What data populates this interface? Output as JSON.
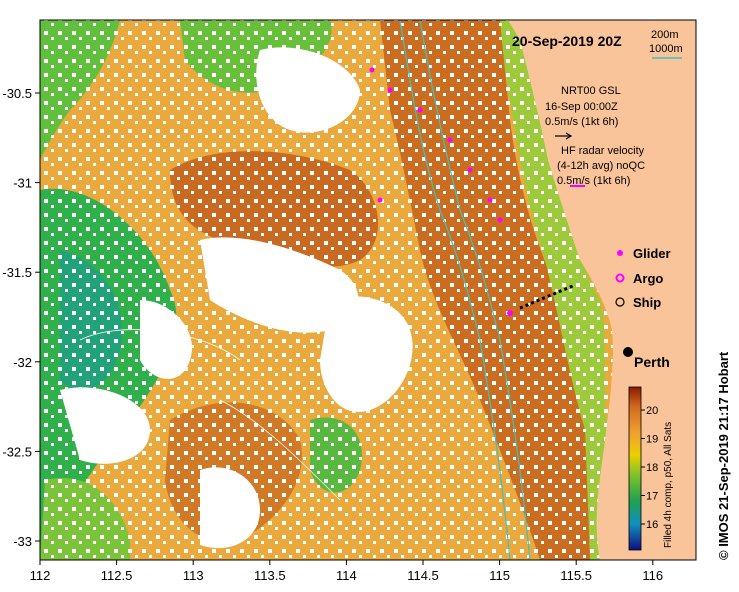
{
  "map": {
    "title": "20-Sep-2019 20Z",
    "depth_contours": [
      "200m",
      "1000m"
    ],
    "x_ticks": [
      "112",
      "112.5",
      "113",
      "113.5",
      "114",
      "114.5",
      "115",
      "115.5",
      "116"
    ],
    "y_ticks": [
      "-30.5",
      "-31",
      "-31.5",
      "-32",
      "-32.5",
      "-33"
    ],
    "geostrophic": {
      "title": "NRT00 GSL",
      "date": "16-Sep 00:00Z",
      "scale": "0.5m/s (1kt 6h)"
    },
    "hf_radar": {
      "line1": "HF radar velocity",
      "line2": "(4-12h avg) noQC",
      "scale": "0.5m/s (1kt 6h)"
    },
    "legend": {
      "glider": "Glider",
      "argo": "Argo",
      "ship": "Ship"
    },
    "place": "Perth",
    "colorbar": {
      "ticks": [
        "20",
        "19",
        "18",
        "17",
        "16"
      ],
      "caption": "Filled 4h comp, p50, All Sats"
    },
    "credit": "© IMOS 21-Sep-2019 21:17 Hobart",
    "colors": {
      "land": "#f9c49a",
      "warm": "#c0621d",
      "mid": "#e8a33a",
      "cool": "#3ab54a",
      "glider": "#ff00ff"
    }
  }
}
